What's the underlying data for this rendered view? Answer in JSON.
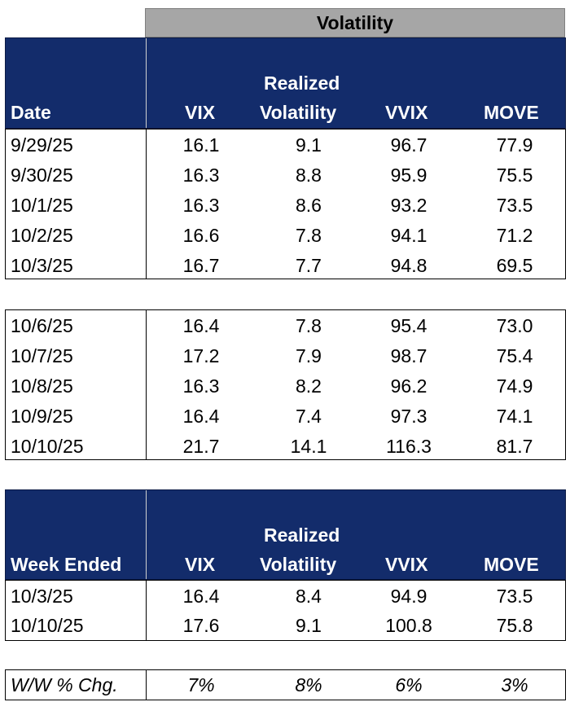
{
  "banner": "Volatility",
  "daily_header": {
    "date": "Date",
    "vix": "VIX",
    "realized_1": "Realized",
    "realized_2": "Volatility",
    "vvix": "VVIX",
    "move": "MOVE"
  },
  "week1": [
    {
      "date": "9/29/25",
      "vix": "16.1",
      "rv": "9.1",
      "vvix": "96.7",
      "move": "77.9"
    },
    {
      "date": "9/30/25",
      "vix": "16.3",
      "rv": "8.8",
      "vvix": "95.9",
      "move": "75.5"
    },
    {
      "date": "10/1/25",
      "vix": "16.3",
      "rv": "8.6",
      "vvix": "93.2",
      "move": "73.5"
    },
    {
      "date": "10/2/25",
      "vix": "16.6",
      "rv": "7.8",
      "vvix": "94.1",
      "move": "71.2"
    },
    {
      "date": "10/3/25",
      "vix": "16.7",
      "rv": "7.7",
      "vvix": "94.8",
      "move": "69.5"
    }
  ],
  "week2": [
    {
      "date": "10/6/25",
      "vix": "16.4",
      "rv": "7.8",
      "vvix": "95.4",
      "move": "73.0"
    },
    {
      "date": "10/7/25",
      "vix": "17.2",
      "rv": "7.9",
      "vvix": "98.7",
      "move": "75.4"
    },
    {
      "date": "10/8/25",
      "vix": "16.3",
      "rv": "8.2",
      "vvix": "96.2",
      "move": "74.9"
    },
    {
      "date": "10/9/25",
      "vix": "16.4",
      "rv": "7.4",
      "vvix": "97.3",
      "move": "74.1"
    },
    {
      "date": "10/10/25",
      "vix": "21.7",
      "rv": "14.1",
      "vvix": "116.3",
      "move": "81.7"
    }
  ],
  "weekly_header": {
    "date": "Week Ended",
    "vix": "VIX",
    "realized_1": "Realized",
    "realized_2": "Volatility",
    "vvix": "VVIX",
    "move": "MOVE"
  },
  "weekly": [
    {
      "date": "10/3/25",
      "vix": "16.4",
      "rv": "8.4",
      "vvix": "94.9",
      "move": "73.5"
    },
    {
      "date": "10/10/25",
      "vix": "17.6",
      "rv": "9.1",
      "vvix": "100.8",
      "move": "75.8"
    }
  ],
  "change": {
    "label": "W/W % Chg.",
    "vix": "7%",
    "rv": "8%",
    "vvix": "6%",
    "move": "3%"
  }
}
